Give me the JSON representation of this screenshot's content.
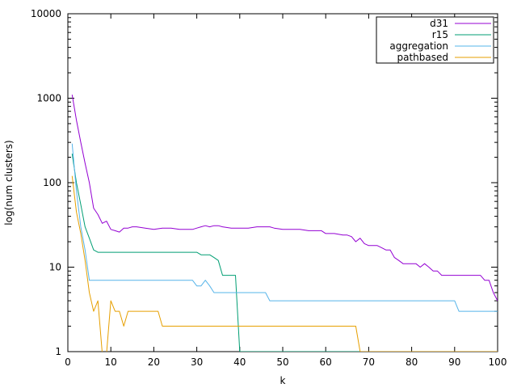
{
  "chart_data": {
    "type": "line",
    "title": "",
    "xlabel": "k",
    "ylabel": "log(num clusters)",
    "yscale": "log",
    "xlim": [
      0,
      100
    ],
    "ylim": [
      1,
      10000
    ],
    "xticks": [
      0,
      10,
      20,
      30,
      40,
      50,
      60,
      70,
      80,
      90,
      100
    ],
    "yticks": [
      1,
      10,
      100,
      1000,
      10000
    ],
    "ytick_labels": [
      "1",
      "10",
      "100",
      "1000",
      "10000"
    ],
    "legend_position": "top-right",
    "series": [
      {
        "name": "d31",
        "color": "#9400d3",
        "x": [
          1,
          2,
          3,
          4,
          5,
          6,
          7,
          8,
          9,
          10,
          11,
          12,
          13,
          14,
          15,
          16,
          18,
          20,
          22,
          24,
          26,
          28,
          29,
          30,
          31,
          32,
          33,
          34,
          35,
          36,
          38,
          40,
          42,
          44,
          46,
          47,
          48,
          50,
          52,
          54,
          56,
          58,
          59,
          60,
          62,
          64,
          65,
          66,
          67,
          68,
          69,
          70,
          72,
          73,
          74,
          75,
          76,
          77,
          78,
          80,
          81,
          82,
          83,
          84,
          85,
          86,
          87,
          88,
          90,
          92,
          94,
          96,
          97,
          98,
          99,
          100
        ],
        "values": [
          1100,
          550,
          300,
          170,
          100,
          50,
          42,
          33,
          35,
          28,
          27,
          26,
          29,
          29,
          30,
          30,
          29,
          28,
          29,
          29,
          28,
          28,
          28,
          29,
          30,
          31,
          30,
          31,
          31,
          30,
          29,
          29,
          29,
          30,
          30,
          30,
          29,
          28,
          28,
          28,
          27,
          27,
          27,
          25,
          25,
          24,
          24,
          23,
          20,
          22,
          19,
          18,
          18,
          17,
          16,
          16,
          13,
          12,
          11,
          11,
          11,
          10,
          11,
          10,
          9,
          9,
          8,
          8,
          8,
          8,
          8,
          8,
          7,
          7,
          5,
          4
        ]
      },
      {
        "name": "r15",
        "color": "#009e73",
        "x": [
          1,
          2,
          3,
          4,
          5,
          6,
          7,
          8,
          10,
          20,
          30,
          31,
          32,
          33,
          34,
          35,
          36,
          38,
          39,
          40,
          100
        ],
        "values": [
          220,
          100,
          55,
          30,
          22,
          16,
          15,
          15,
          15,
          15,
          15,
          14,
          14,
          14,
          13,
          12,
          8,
          8,
          8,
          1,
          1
        ]
      },
      {
        "name": "aggregation",
        "color": "#56b4e9",
        "x": [
          1,
          2,
          3,
          4,
          5,
          6,
          7,
          10,
          20,
          29,
          30,
          31,
          32,
          33,
          34,
          35,
          40,
          46,
          47,
          50,
          60,
          70,
          80,
          89,
          90,
          91,
          100
        ],
        "values": [
          290,
          80,
          30,
          16,
          7,
          7,
          7,
          7,
          7,
          7,
          6,
          6,
          7,
          6,
          5,
          5,
          5,
          5,
          4,
          4,
          4,
          4,
          4,
          4,
          4,
          3,
          3
        ]
      },
      {
        "name": "pathbased",
        "color": "#e69f00",
        "x": [
          1,
          2,
          3,
          4,
          5,
          6,
          7,
          8,
          9,
          10,
          11,
          12,
          13,
          14,
          15,
          20,
          21,
          22,
          30,
          40,
          50,
          60,
          66,
          67,
          68,
          70,
          80,
          100
        ],
        "values": [
          120,
          45,
          25,
          12,
          5,
          3,
          4,
          0.95,
          0.95,
          4,
          3,
          3,
          2,
          3,
          3,
          3,
          3,
          2,
          2,
          2,
          2,
          2,
          2,
          2,
          1,
          1,
          1,
          1
        ]
      }
    ]
  }
}
